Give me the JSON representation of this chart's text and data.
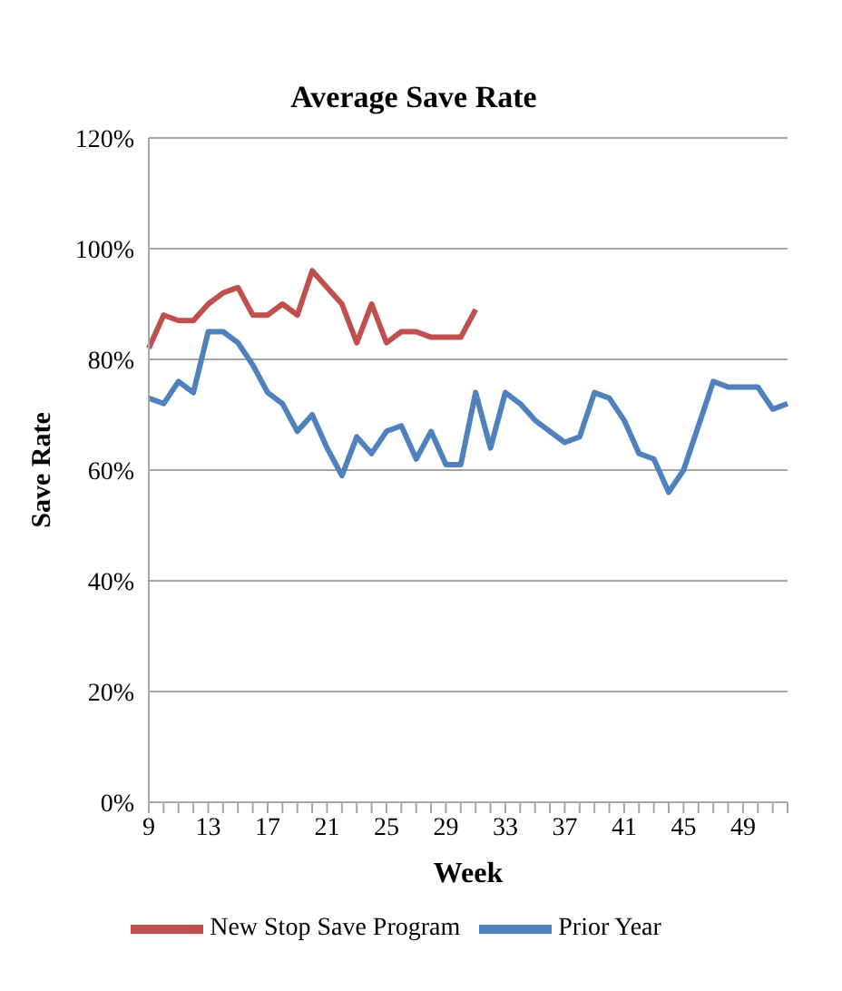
{
  "chart_data": {
    "type": "line",
    "title": "Average Save Rate",
    "xlabel": "Week",
    "ylabel": "Save Rate",
    "categories": [
      "9",
      null,
      null,
      null,
      "13",
      null,
      null,
      null,
      "17",
      null,
      null,
      null,
      "21",
      null,
      null,
      null,
      "25",
      null,
      null,
      null,
      "29",
      null,
      null,
      null,
      "33",
      null,
      null,
      null,
      "37",
      null,
      null,
      null,
      "41",
      null,
      null,
      null,
      "45",
      null,
      null,
      null,
      "49",
      null,
      null,
      null
    ],
    "series": [
      {
        "name": "Prior Year",
        "color": "#4f81bd",
        "values": [
          73,
          72,
          76,
          74,
          85,
          85,
          83,
          79,
          74,
          72,
          67,
          70,
          64,
          59,
          66,
          63,
          67,
          68,
          62,
          67,
          61,
          61,
          74,
          64,
          74,
          72,
          69,
          67,
          65,
          66,
          74,
          73,
          69,
          63,
          62,
          56,
          60,
          68,
          76,
          75,
          75,
          75,
          71,
          72
        ]
      },
      {
        "name": "New Stop Save Program",
        "color": "#c0504d",
        "values": [
          82,
          88,
          87,
          87,
          90,
          92,
          93,
          88,
          88,
          90,
          88,
          96,
          93,
          90,
          83,
          90,
          83,
          85,
          85,
          84,
          84,
          84,
          89,
          null,
          null,
          null,
          null,
          null,
          null,
          null,
          null,
          null,
          null,
          null,
          null,
          null,
          null,
          null,
          null,
          null,
          null,
          null,
          null,
          null
        ]
      }
    ],
    "ylim": [
      0,
      120
    ],
    "yticks": [
      {
        "value": 0,
        "label": "0%"
      },
      {
        "value": 20,
        "label": "20%"
      },
      {
        "value": 40,
        "label": "40%"
      },
      {
        "value": 60,
        "label": "60%"
      },
      {
        "value": 80,
        "label": "80%"
      },
      {
        "value": 100,
        "label": "100%"
      },
      {
        "value": 120,
        "label": "120%"
      }
    ],
    "grid": "y",
    "legend": "bottom",
    "marker": "none",
    "line_style": "solid"
  }
}
